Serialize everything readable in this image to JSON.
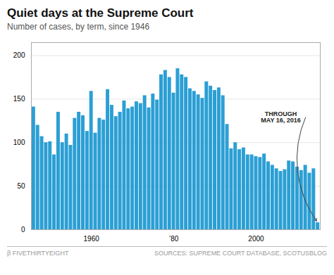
{
  "chart_data": {
    "type": "bar",
    "title": "Quiet days at the Supreme Court",
    "subtitle": "Number of cases, by term, since 1946",
    "annotation": "THROUGH\nMAY 16, 2016",
    "caption": "β FIVETHIRTYEIGHT",
    "source": "SOURCES: SUPREME COURT DATABASE, SCOTUSBLOG",
    "categories": [
      null,
      null,
      null,
      null,
      null,
      null,
      null,
      null,
      null,
      null,
      null,
      null,
      null,
      null,
      "1960",
      null,
      null,
      null,
      null,
      null,
      null,
      null,
      null,
      null,
      null,
      null,
      null,
      null,
      null,
      null,
      null,
      null,
      null,
      null,
      "’80",
      null,
      null,
      null,
      null,
      null,
      null,
      null,
      null,
      null,
      null,
      null,
      null,
      null,
      null,
      null,
      null,
      null,
      null,
      null,
      "2000",
      null,
      null,
      null,
      null,
      null,
      null,
      null,
      null,
      null,
      null,
      null,
      null,
      null,
      null,
      null
    ],
    "values": [
      141,
      120,
      107,
      100,
      101,
      86,
      135,
      100,
      110,
      97,
      128,
      135,
      131,
      113,
      159,
      111,
      128,
      126,
      161,
      143,
      130,
      135,
      148,
      139,
      141,
      147,
      145,
      154,
      140,
      156,
      149,
      178,
      183,
      175,
      157,
      185,
      178,
      175,
      162,
      159,
      155,
      151,
      170,
      165,
      160,
      163,
      154,
      121,
      93,
      100,
      92,
      94,
      86,
      86,
      84,
      83,
      87,
      78,
      74,
      70,
      67,
      69,
      79,
      78,
      72,
      68,
      74,
      65,
      70,
      8
    ],
    "color": "#2b9fd4",
    "ylim": [
      0,
      215
    ],
    "yticks": [
      0,
      50,
      100,
      150,
      200
    ],
    "grid": true
  }
}
